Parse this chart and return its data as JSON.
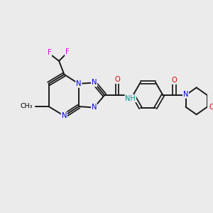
{
  "background_color": "#ebebeb",
  "bond_color": "#1a1a1a",
  "atom_colors": {
    "N": "#0000dd",
    "O": "#dd0000",
    "F": "#dd00dd",
    "C": "#1a1a1a",
    "H": "#009090"
  },
  "figsize": [
    3.0,
    3.0
  ],
  "dpi": 100
}
